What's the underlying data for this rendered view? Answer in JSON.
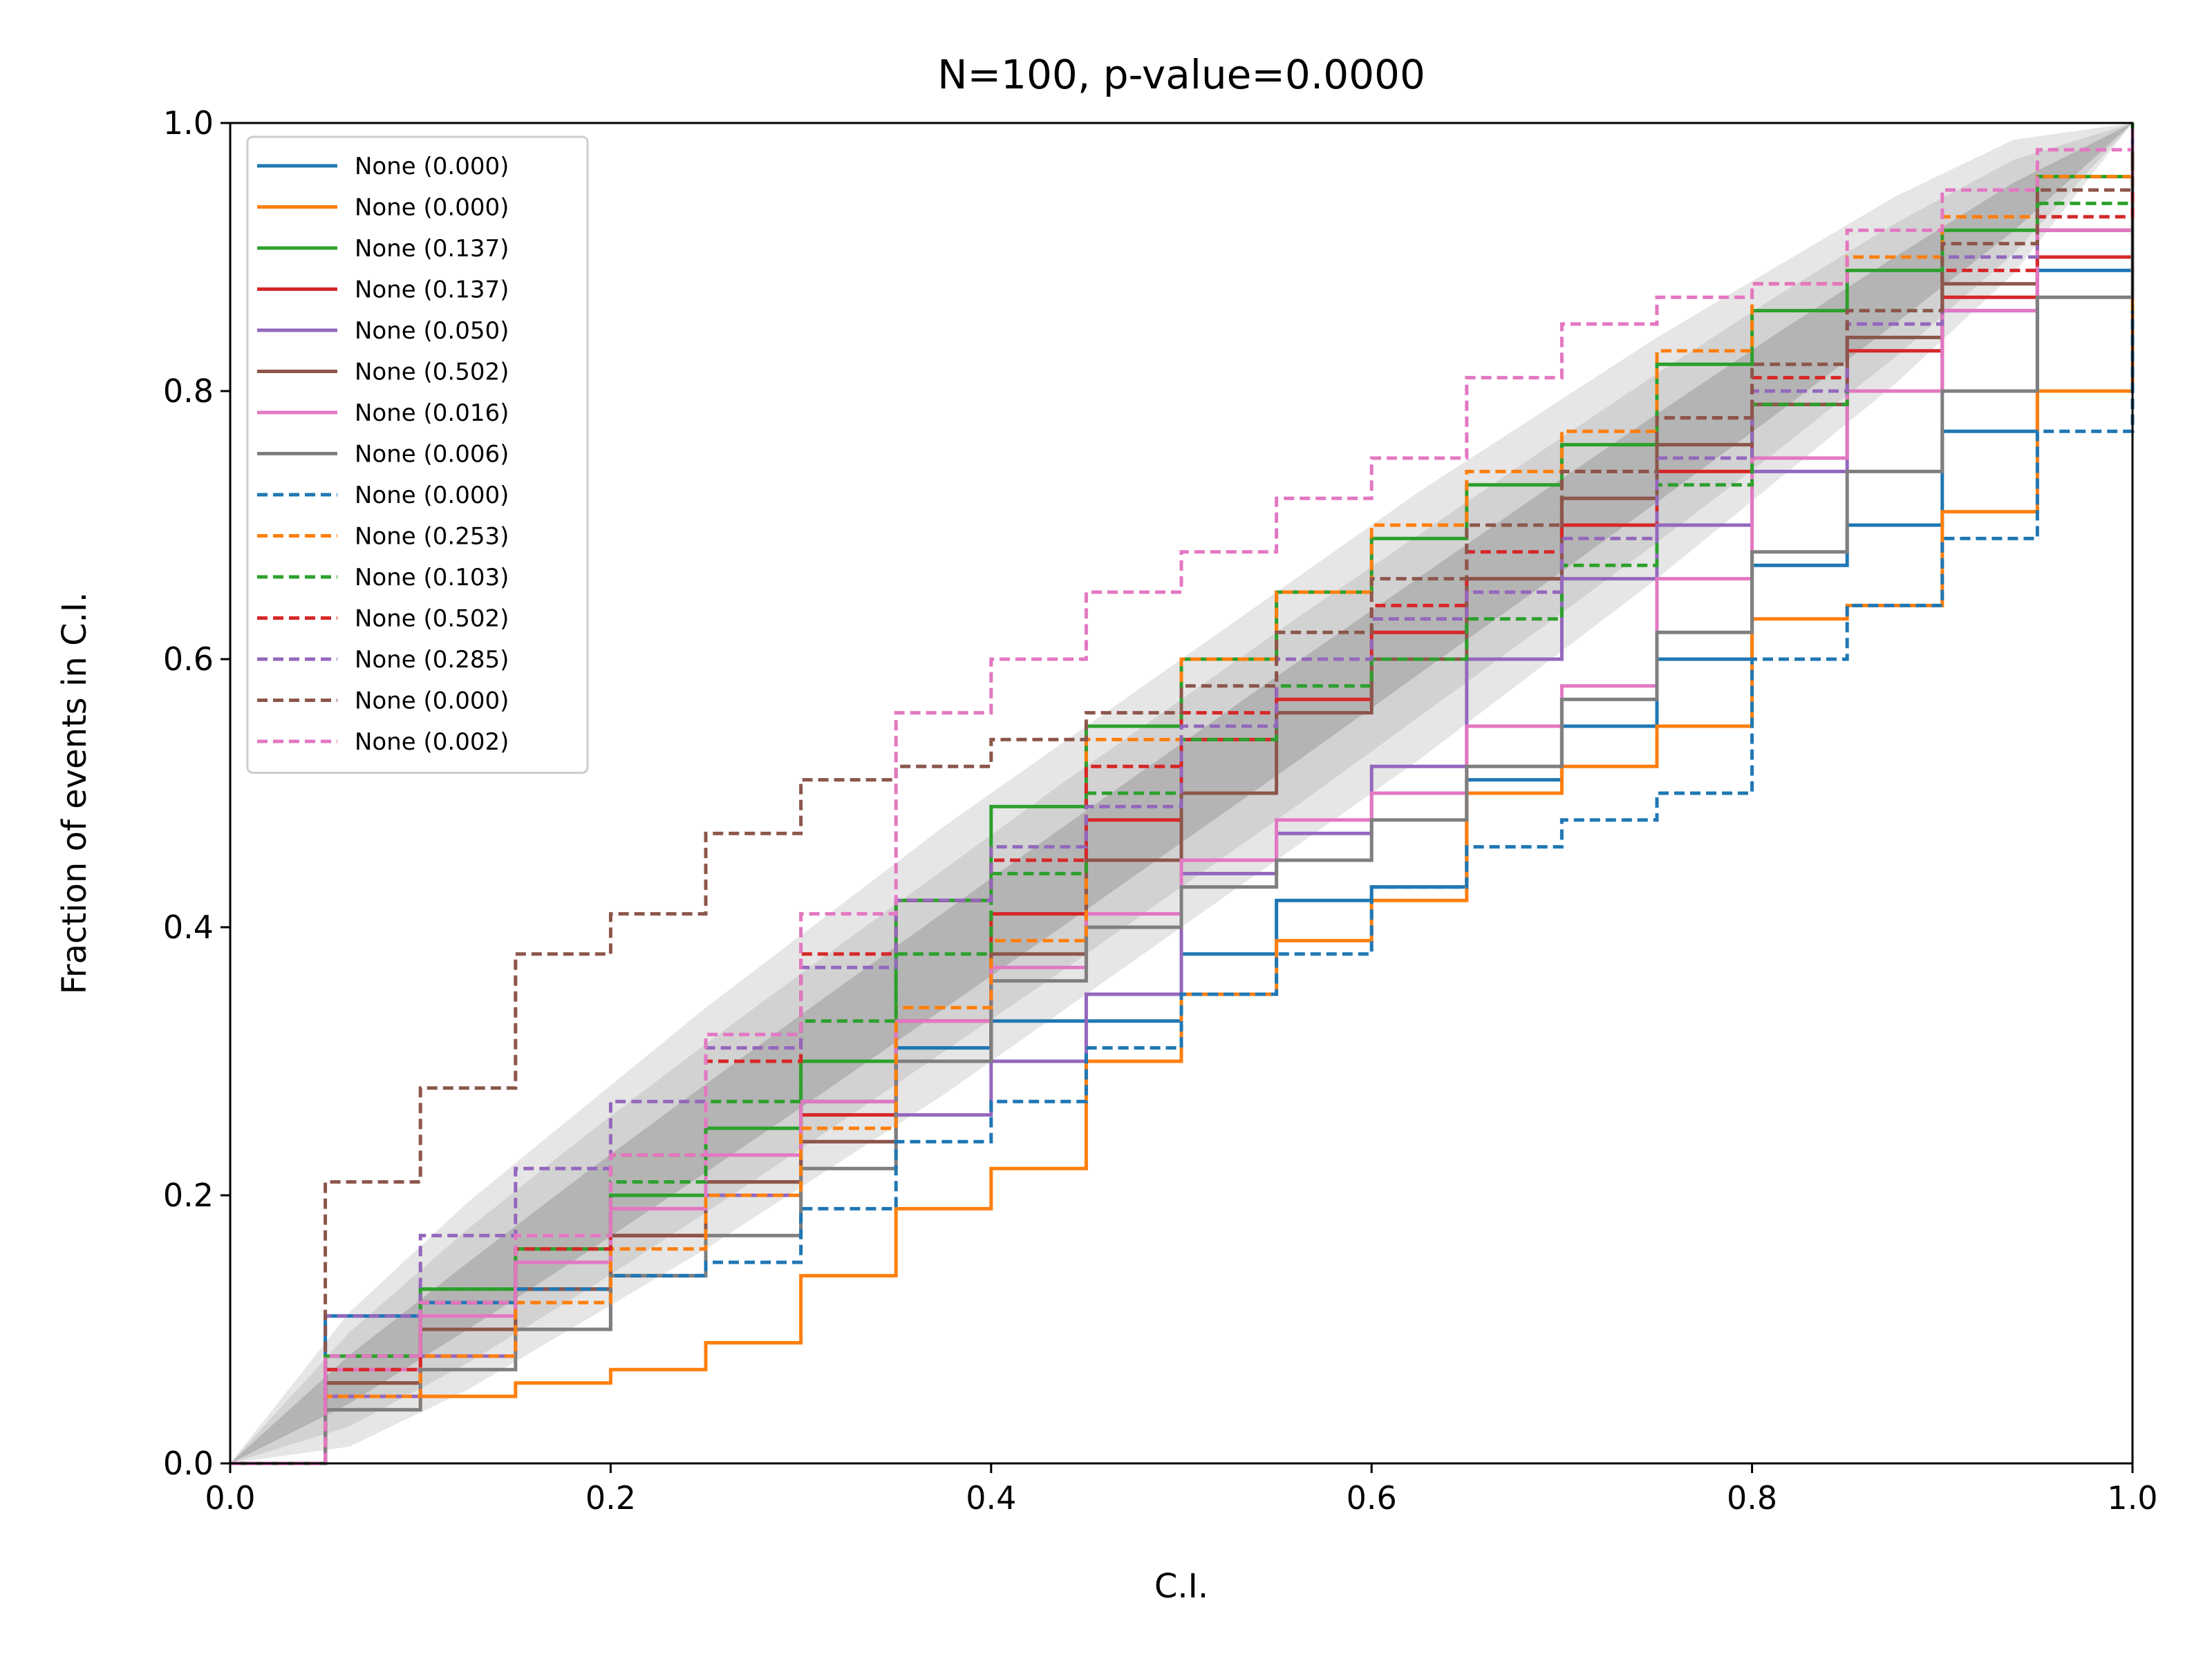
{
  "chart_data": {
    "type": "line",
    "title": "N=100, p-value=0.0000",
    "xlabel": "C.I.",
    "ylabel": "Fraction of events in C.I.",
    "xlim": [
      0.0,
      1.0
    ],
    "ylim": [
      0.0,
      1.0
    ],
    "xticks": [
      "0.0",
      "0.2",
      "0.4",
      "0.6",
      "0.8",
      "1.0"
    ],
    "yticks": [
      "0.0",
      "0.2",
      "0.4",
      "0.6",
      "0.8",
      "1.0"
    ],
    "grid": false,
    "legend_position": "upper-left",
    "bands": [
      {
        "level": "outer",
        "color": "#e6e6e6",
        "half_width": [
          0,
          0.05,
          0.07,
          0.08,
          0.09,
          0.095,
          0.1,
          0.1,
          0.1,
          0.1,
          0.1,
          0.095,
          0.09,
          0.08,
          0.07,
          0.05,
          0
        ]
      },
      {
        "level": "middle",
        "color": "#d2d2d2",
        "half_width": [
          0,
          0.035,
          0.05,
          0.058,
          0.063,
          0.066,
          0.068,
          0.07,
          0.07,
          0.07,
          0.068,
          0.066,
          0.063,
          0.058,
          0.05,
          0.035,
          0
        ]
      },
      {
        "level": "inner",
        "color": "#b4b4b4",
        "half_width": [
          0,
          0.018,
          0.025,
          0.03,
          0.033,
          0.035,
          0.036,
          0.037,
          0.037,
          0.037,
          0.036,
          0.035,
          0.033,
          0.03,
          0.025,
          0.018,
          0
        ]
      }
    ],
    "x": [
      0,
      0.05,
      0.1,
      0.15,
      0.2,
      0.25,
      0.3,
      0.35,
      0.4,
      0.45,
      0.5,
      0.55,
      0.6,
      0.65,
      0.7,
      0.75,
      0.8,
      0.85,
      0.9,
      0.95,
      1.0
    ],
    "series": [
      {
        "name": "None (0.000)",
        "color": "#1f77b4",
        "dash": "solid",
        "values": [
          0,
          0.11,
          0.12,
          0.13,
          0.14,
          0.2,
          0.27,
          0.31,
          0.33,
          0.33,
          0.38,
          0.42,
          0.43,
          0.51,
          0.55,
          0.6,
          0.67,
          0.7,
          0.77,
          0.89,
          0.97
        ]
      },
      {
        "name": "None (0.000)",
        "color": "#ff7f0e",
        "dash": "solid",
        "values": [
          0,
          0.04,
          0.05,
          0.06,
          0.07,
          0.09,
          0.14,
          0.19,
          0.22,
          0.3,
          0.35,
          0.39,
          0.42,
          0.5,
          0.52,
          0.55,
          0.63,
          0.64,
          0.71,
          0.8,
          0.95
        ]
      },
      {
        "name": "None (0.137)",
        "color": "#2ca02c",
        "dash": "solid",
        "values": [
          0,
          0.08,
          0.13,
          0.16,
          0.2,
          0.25,
          0.3,
          0.42,
          0.49,
          0.55,
          0.6,
          0.65,
          0.69,
          0.73,
          0.76,
          0.82,
          0.86,
          0.89,
          0.92,
          0.96,
          1.0
        ]
      },
      {
        "name": "None (0.137)",
        "color": "#d62728",
        "dash": "solid",
        "values": [
          0,
          0.06,
          0.1,
          0.13,
          0.17,
          0.21,
          0.26,
          0.33,
          0.41,
          0.48,
          0.54,
          0.57,
          0.62,
          0.66,
          0.7,
          0.74,
          0.79,
          0.83,
          0.87,
          0.9,
          0.99
        ]
      },
      {
        "name": "None (0.050)",
        "color": "#9467bd",
        "dash": "solid",
        "values": [
          0,
          0.05,
          0.08,
          0.1,
          0.14,
          0.2,
          0.24,
          0.26,
          0.3,
          0.35,
          0.44,
          0.47,
          0.52,
          0.6,
          0.66,
          0.7,
          0.74,
          0.8,
          0.86,
          0.92,
          0.99
        ]
      },
      {
        "name": "None (0.502)",
        "color": "#8c564b",
        "dash": "solid",
        "values": [
          0,
          0.06,
          0.1,
          0.13,
          0.17,
          0.21,
          0.24,
          0.3,
          0.38,
          0.45,
          0.5,
          0.56,
          0.6,
          0.66,
          0.72,
          0.76,
          0.79,
          0.84,
          0.88,
          0.92,
          0.98
        ]
      },
      {
        "name": "None (0.016)",
        "color": "#e377c2",
        "dash": "solid",
        "values": [
          0,
          0.07,
          0.11,
          0.15,
          0.19,
          0.23,
          0.27,
          0.33,
          0.37,
          0.41,
          0.45,
          0.48,
          0.5,
          0.55,
          0.58,
          0.66,
          0.75,
          0.8,
          0.86,
          0.92,
          0.97
        ]
      },
      {
        "name": "None (0.006)",
        "color": "#7f7f7f",
        "dash": "solid",
        "values": [
          0,
          0.04,
          0.07,
          0.1,
          0.14,
          0.17,
          0.22,
          0.3,
          0.36,
          0.4,
          0.43,
          0.45,
          0.48,
          0.52,
          0.57,
          0.62,
          0.68,
          0.74,
          0.8,
          0.87,
          0.96
        ]
      },
      {
        "name": "None (0.000)",
        "color": "#1f77b4",
        "dash": "dashed",
        "values": [
          0,
          0.11,
          0.12,
          0.13,
          0.14,
          0.15,
          0.19,
          0.24,
          0.27,
          0.31,
          0.35,
          0.38,
          0.43,
          0.46,
          0.48,
          0.5,
          0.6,
          0.64,
          0.69,
          0.77,
          0.86
        ]
      },
      {
        "name": "None (0.253)",
        "color": "#ff7f0e",
        "dash": "dashed",
        "values": [
          0,
          0.05,
          0.08,
          0.12,
          0.16,
          0.2,
          0.25,
          0.34,
          0.39,
          0.54,
          0.6,
          0.65,
          0.7,
          0.74,
          0.77,
          0.83,
          0.88,
          0.9,
          0.93,
          0.96,
          0.99
        ]
      },
      {
        "name": "None (0.103)",
        "color": "#2ca02c",
        "dash": "dashed",
        "values": [
          0,
          0.08,
          0.13,
          0.16,
          0.21,
          0.27,
          0.33,
          0.38,
          0.44,
          0.5,
          0.54,
          0.58,
          0.6,
          0.63,
          0.67,
          0.73,
          0.79,
          0.85,
          0.9,
          0.94,
          0.99
        ]
      },
      {
        "name": "None (0.502)",
        "color": "#d62728",
        "dash": "dashed",
        "values": [
          0,
          0.07,
          0.12,
          0.16,
          0.23,
          0.3,
          0.38,
          0.42,
          0.45,
          0.52,
          0.56,
          0.6,
          0.64,
          0.68,
          0.74,
          0.78,
          0.81,
          0.85,
          0.89,
          0.93,
          0.98
        ]
      },
      {
        "name": "None (0.285)",
        "color": "#9467bd",
        "dash": "dashed",
        "values": [
          0,
          0.11,
          0.17,
          0.22,
          0.27,
          0.31,
          0.37,
          0.42,
          0.46,
          0.49,
          0.55,
          0.6,
          0.63,
          0.65,
          0.69,
          0.75,
          0.8,
          0.85,
          0.9,
          0.95,
          1.0
        ]
      },
      {
        "name": "None (0.000)",
        "color": "#8c564b",
        "dash": "dashed",
        "values": [
          0,
          0.21,
          0.28,
          0.38,
          0.41,
          0.47,
          0.51,
          0.52,
          0.54,
          0.56,
          0.58,
          0.62,
          0.66,
          0.7,
          0.74,
          0.78,
          0.82,
          0.86,
          0.91,
          0.95,
          1.0
        ]
      },
      {
        "name": "None (0.002)",
        "color": "#e377c2",
        "dash": "dashed",
        "values": [
          0,
          0.08,
          0.12,
          0.17,
          0.23,
          0.32,
          0.41,
          0.56,
          0.6,
          0.65,
          0.68,
          0.72,
          0.75,
          0.81,
          0.85,
          0.87,
          0.88,
          0.92,
          0.95,
          0.98,
          1.0
        ]
      }
    ]
  }
}
